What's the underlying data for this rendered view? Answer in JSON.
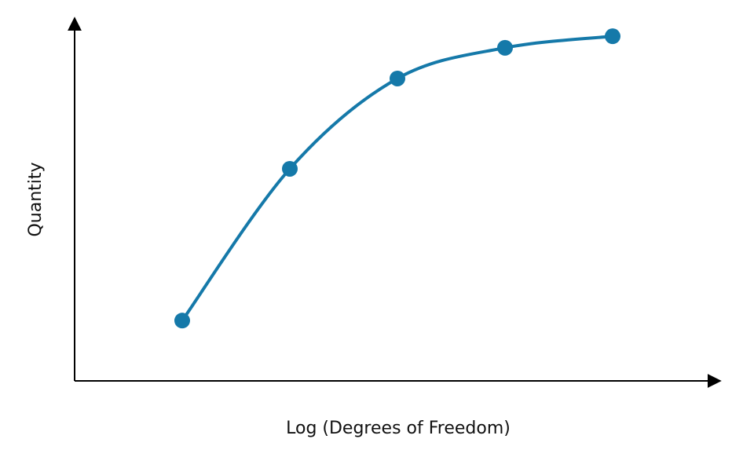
{
  "chart_data": {
    "type": "line",
    "x_label": "Log (Degrees of Freedom)",
    "y_label": "Quantity",
    "x": [
      1,
      2,
      3,
      4,
      5
    ],
    "series": [
      {
        "color": "#1579a9",
        "values": [
          16.7,
          58.7,
          83.7,
          92.2,
          95.4
        ]
      }
    ],
    "xlim": [
      0,
      6
    ],
    "ylim": [
      0,
      100
    ]
  }
}
